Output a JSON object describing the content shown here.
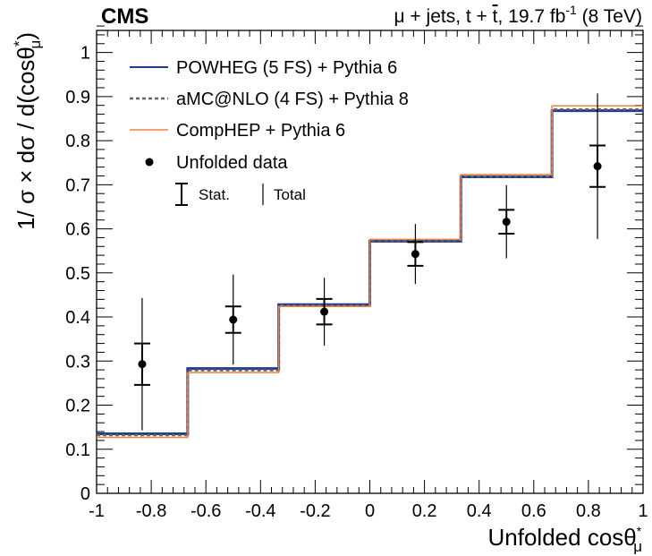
{
  "chart_data": {
    "type": "line",
    "experiment": "CMS",
    "header": {
      "prefix": "μ + jets, t + ",
      "tbar": "t",
      "middle": ", 19.7 fb",
      "superscript": "-1",
      "suffix": " (8 TeV)"
    },
    "xlabel": {
      "main": "Unfolded cosθ",
      "sup": "*",
      "sub": "μ"
    },
    "ylabel": {
      "main": "1/ σ × dσ / d(cosθ",
      "sup": "*",
      "sub": "μ",
      "close": ")"
    },
    "xlim": [
      -1,
      1
    ],
    "ylim": [
      0,
      1.05
    ],
    "xticks": [
      -1,
      -0.8,
      -0.6,
      -0.4,
      -0.2,
      0,
      0.2,
      0.4,
      0.6,
      0.8,
      1
    ],
    "xtick_labels": [
      "-1",
      "-0.8",
      "-0.6",
      "-0.4",
      "-0.2",
      "0",
      "0.2",
      "0.4",
      "0.6",
      "0.8",
      "1"
    ],
    "yticks": [
      0,
      0.1,
      0.2,
      0.3,
      0.4,
      0.5,
      0.6,
      0.7,
      0.8,
      0.9,
      1
    ],
    "ytick_labels": [
      "0",
      "0.1",
      "0.2",
      "0.3",
      "0.4",
      "0.5",
      "0.6",
      "0.7",
      "0.8",
      "0.9",
      "1"
    ],
    "bin_edges": [
      -1,
      -0.6667,
      -0.3333,
      0,
      0.3333,
      0.6667,
      1
    ],
    "series": [
      {
        "name": "POWHEG (5 FS) + Pythia 6",
        "style": "solid",
        "color": "#1f3d8c",
        "values": [
          0.135,
          0.283,
          0.428,
          0.572,
          0.718,
          0.868
        ]
      },
      {
        "name": "aMC@NLO (4 FS) + Pythia 8",
        "style": "dashed",
        "color": "#666666",
        "values": [
          0.132,
          0.279,
          0.426,
          0.574,
          0.719,
          0.871
        ]
      },
      {
        "name": "CompHEP + Pythia 6",
        "style": "solid",
        "color": "#f08040",
        "values": [
          0.127,
          0.274,
          0.424,
          0.576,
          0.723,
          0.879
        ]
      }
    ],
    "data": {
      "name": "Unfolded data",
      "x": [
        -0.8333,
        -0.5,
        -0.1667,
        0.1667,
        0.5,
        0.8333
      ],
      "y": [
        0.293,
        0.394,
        0.412,
        0.543,
        0.616,
        0.742
      ],
      "stat": [
        0.047,
        0.03,
        0.029,
        0.027,
        0.027,
        0.047
      ],
      "total": [
        0.15,
        0.102,
        0.077,
        0.068,
        0.083,
        0.165
      ]
    },
    "legend": {
      "position": "top-left",
      "stat_label": "Stat.",
      "total_label": "Total"
    }
  }
}
